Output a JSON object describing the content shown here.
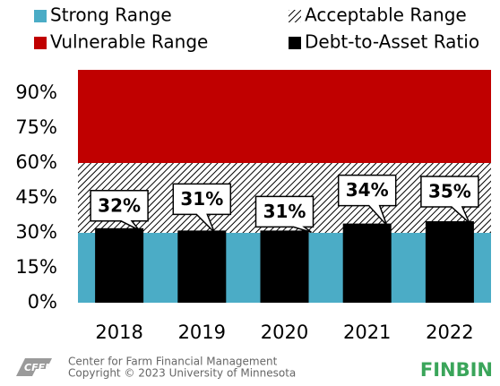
{
  "chart_data": {
    "type": "bar",
    "ranges": [
      {
        "name": "Strong Range",
        "color": "#4bacc6",
        "value": 30
      },
      {
        "name": "Acceptable Range",
        "color": "hatch",
        "value": 30
      },
      {
        "name": "Vulnerable Range",
        "color": "#c00000",
        "value": 40
      }
    ],
    "categories": [
      "2018",
      "2019",
      "2020",
      "2021",
      "2022"
    ],
    "series": [
      {
        "name": "Debt-to-Asset Ratio",
        "color": "#000000",
        "values": [
          32,
          31,
          31,
          34,
          35
        ],
        "value_labels": [
          "32%",
          "31%",
          "31%",
          "34%",
          "35%"
        ]
      }
    ],
    "ylim": [
      0,
      100
    ],
    "yticks": [
      {
        "value": 0,
        "label": "0%"
      },
      {
        "value": 15,
        "label": "15%"
      },
      {
        "value": 30,
        "label": "30%"
      },
      {
        "value": 45,
        "label": "45%"
      },
      {
        "value": 60,
        "label": "60%"
      },
      {
        "value": 75,
        "label": "75%"
      },
      {
        "value": 90,
        "label": "90%"
      }
    ],
    "footer": {
      "org": "Center for Farm Financial Management",
      "copyright": "Copyright © 2023 University of Minnesota",
      "brand": "FINBIN"
    }
  }
}
